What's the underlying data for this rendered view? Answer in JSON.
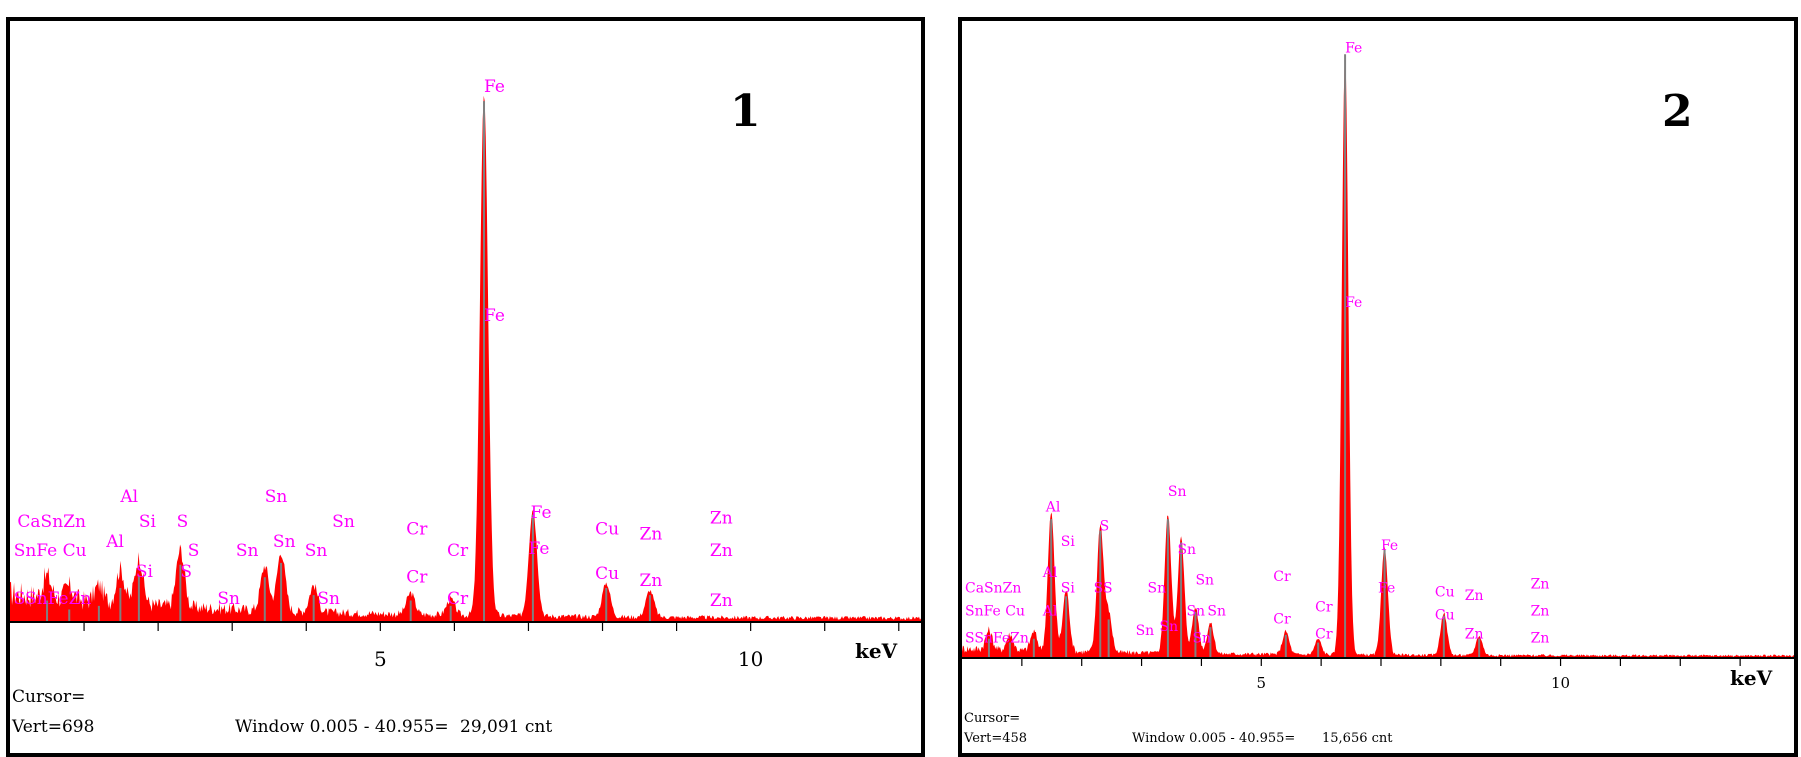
{
  "chart_data": [
    {
      "type": "area",
      "panel_label": "1",
      "xlabel": "keV",
      "xlim": [
        0,
        12.3
      ],
      "ylim": [
        0,
        31000
      ],
      "x_ticks": [
        5,
        10
      ],
      "series": [
        {
          "peaks": [
            {
              "x": 0.5,
              "y": 1200
            },
            {
              "x": 0.8,
              "y": 700
            },
            {
              "x": 1.2,
              "y": 900
            },
            {
              "x": 1.49,
              "y": 1900
            },
            {
              "x": 1.74,
              "y": 2600
            },
            {
              "x": 2.3,
              "y": 3200
            },
            {
              "x": 3.44,
              "y": 2500
            },
            {
              "x": 3.66,
              "y": 3300
            },
            {
              "x": 4.1,
              "y": 1500
            },
            {
              "x": 5.41,
              "y": 1200
            },
            {
              "x": 5.95,
              "y": 900
            },
            {
              "x": 6.4,
              "y": 29091
            },
            {
              "x": 7.06,
              "y": 6000
            },
            {
              "x": 8.05,
              "y": 1900
            },
            {
              "x": 8.64,
              "y": 1500
            }
          ],
          "baseline_start": 1500,
          "baseline_end": 200
        }
      ],
      "element_labels": [
        {
          "text": "Fe",
          "x": 6.4,
          "y": 29600
        },
        {
          "text": "Fe",
          "x": 6.4,
          "y": 16800
        },
        {
          "text": "Al",
          "x": 1.49,
          "y": 6700
        },
        {
          "text": "Sn",
          "x": 3.44,
          "y": 6700
        },
        {
          "text": "CaSnZn",
          "x": 0.1,
          "y": 5300
        },
        {
          "text": "Si",
          "x": 1.74,
          "y": 5300
        },
        {
          "text": "S",
          "x": 2.25,
          "y": 5300
        },
        {
          "text": "Sn",
          "x": 4.35,
          "y": 5300
        },
        {
          "text": "Cr",
          "x": 5.35,
          "y": 4900
        },
        {
          "text": "Fe",
          "x": 7.03,
          "y": 5800
        },
        {
          "text": "Cu",
          "x": 7.9,
          "y": 4900
        },
        {
          "text": "Zn",
          "x": 8.5,
          "y": 4600
        },
        {
          "text": "Zn",
          "x": 9.45,
          "y": 5500
        },
        {
          "text": "SnFe Cu",
          "x": 0.05,
          "y": 3700
        },
        {
          "text": "Al",
          "x": 1.3,
          "y": 4200
        },
        {
          "text": "S",
          "x": 2.4,
          "y": 3700
        },
        {
          "text": "Sn",
          "x": 3.05,
          "y": 3700
        },
        {
          "text": "Sn",
          "x": 3.55,
          "y": 4200
        },
        {
          "text": "Sn",
          "x": 3.98,
          "y": 3700
        },
        {
          "text": "Cr",
          "x": 5.9,
          "y": 3700
        },
        {
          "text": "Fe",
          "x": 7.0,
          "y": 3800
        },
        {
          "text": "Zn",
          "x": 9.45,
          "y": 3700
        },
        {
          "text": "Si",
          "x": 1.7,
          "y": 2500
        },
        {
          "text": "S",
          "x": 2.3,
          "y": 2500
        },
        {
          "text": "Cr",
          "x": 5.35,
          "y": 2200
        },
        {
          "text": "Cu",
          "x": 7.9,
          "y": 2400
        },
        {
          "text": "Zn",
          "x": 8.5,
          "y": 2000
        },
        {
          "text": "SSnFeZn",
          "x": 0.05,
          "y": 1000
        },
        {
          "text": "Sn",
          "x": 2.8,
          "y": 1000
        },
        {
          "text": "Cr",
          "x": 5.9,
          "y": 1000
        },
        {
          "text": "Sn",
          "x": 4.15,
          "y": 1000
        },
        {
          "text": "Zn",
          "x": 9.45,
          "y": 900
        }
      ],
      "status": {
        "cursor": "Cursor=",
        "vert": "Vert=698",
        "window": "Window 0.005 - 40.955=",
        "count": "29,091 cnt"
      }
    },
    {
      "type": "area",
      "panel_label": "2",
      "xlabel": "keV",
      "xlim": [
        0,
        13.9
      ],
      "ylim": [
        0,
        16000
      ],
      "x_ticks": [
        5,
        10
      ],
      "series": [
        {
          "peaks": [
            {
              "x": 0.45,
              "y": 500
            },
            {
              "x": 0.8,
              "y": 400
            },
            {
              "x": 1.2,
              "y": 500
            },
            {
              "x": 1.49,
              "y": 3600
            },
            {
              "x": 1.74,
              "y": 1600
            },
            {
              "x": 2.31,
              "y": 3300
            },
            {
              "x": 2.45,
              "y": 1000
            },
            {
              "x": 3.44,
              "y": 3600
            },
            {
              "x": 3.66,
              "y": 3000
            },
            {
              "x": 3.9,
              "y": 1200
            },
            {
              "x": 4.15,
              "y": 800
            },
            {
              "x": 5.41,
              "y": 600
            },
            {
              "x": 5.95,
              "y": 400
            },
            {
              "x": 6.4,
              "y": 15656
            },
            {
              "x": 7.06,
              "y": 2800
            },
            {
              "x": 8.05,
              "y": 1100
            },
            {
              "x": 8.64,
              "y": 500
            }
          ],
          "baseline_start": 200,
          "baseline_end": 60
        }
      ],
      "element_labels": [
        {
          "text": "Fe",
          "x": 6.4,
          "y": 15700
        },
        {
          "text": "Fe",
          "x": 6.4,
          "y": 9100
        },
        {
          "text": "Sn",
          "x": 3.44,
          "y": 4200
        },
        {
          "text": "Al",
          "x": 1.4,
          "y": 3800
        },
        {
          "text": "Si",
          "x": 1.65,
          "y": 2900
        },
        {
          "text": "S",
          "x": 2.3,
          "y": 3300
        },
        {
          "text": "Sn",
          "x": 3.6,
          "y": 2700
        },
        {
          "text": "Sn",
          "x": 3.9,
          "y": 1900
        },
        {
          "text": "Fe",
          "x": 7.0,
          "y": 2800
        },
        {
          "text": "CaSnZn",
          "x": 0.05,
          "y": 1700
        },
        {
          "text": "Al",
          "x": 1.35,
          "y": 2100
        },
        {
          "text": "Si",
          "x": 1.65,
          "y": 1700
        },
        {
          "text": "SS",
          "x": 2.2,
          "y": 1700
        },
        {
          "text": "Sn",
          "x": 3.1,
          "y": 1700
        },
        {
          "text": "Cr",
          "x": 5.2,
          "y": 2000
        },
        {
          "text": "Cu",
          "x": 7.9,
          "y": 1600
        },
        {
          "text": "Zn",
          "x": 8.4,
          "y": 1500
        },
        {
          "text": "Zn",
          "x": 9.5,
          "y": 1800
        },
        {
          "text": "Fe",
          "x": 6.95,
          "y": 1700
        },
        {
          "text": "SnFe Cu",
          "x": 0.05,
          "y": 1100
        },
        {
          "text": "Al",
          "x": 1.35,
          "y": 1100
        },
        {
          "text": "Sn",
          "x": 3.75,
          "y": 1100
        },
        {
          "text": "Sn",
          "x": 4.1,
          "y": 1100
        },
        {
          "text": "Cr",
          "x": 5.9,
          "y": 1200
        },
        {
          "text": "Zn",
          "x": 9.5,
          "y": 1100
        },
        {
          "text": "Cr",
          "x": 5.2,
          "y": 900
        },
        {
          "text": "Cu",
          "x": 7.9,
          "y": 1000
        },
        {
          "text": "SSnFeZn",
          "x": 0.05,
          "y": 400
        },
        {
          "text": "Sn",
          "x": 2.9,
          "y": 600
        },
        {
          "text": "Sn",
          "x": 3.3,
          "y": 700
        },
        {
          "text": "Sn",
          "x": 3.85,
          "y": 400
        },
        {
          "text": "Cr",
          "x": 5.9,
          "y": 500
        },
        {
          "text": "Zn",
          "x": 8.4,
          "y": 500
        },
        {
          "text": "Zn",
          "x": 9.5,
          "y": 400
        }
      ],
      "status": {
        "cursor": "Cursor=",
        "vert": "Vert=458",
        "window": "Window 0.005 - 40.955=",
        "count": "15,656 cnt"
      }
    }
  ],
  "colors": {
    "spectrum_fill": "#ff0000",
    "peak_outline": "#808080",
    "label_text": "#ff00ff",
    "axis": "#000000"
  }
}
